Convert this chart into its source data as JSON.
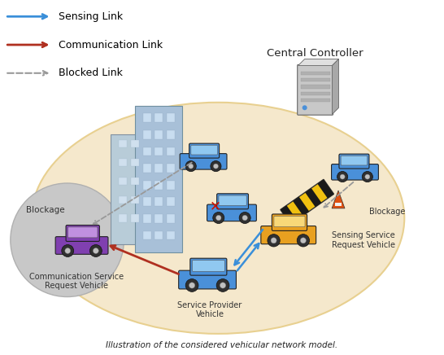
{
  "caption": "Illustration of the considered vehicular network model.",
  "background_color": "#ffffff",
  "ellipse_color": "#f5e8cc",
  "ellipse_edge_color": "#e8d090",
  "gray_circle_color": "#c0c0c0",
  "legend": {
    "sensing_link_color": "#3a8fd9",
    "comm_link_color": "#b03020",
    "blocked_link_color": "#999999",
    "sensing_label": "Sensing Link",
    "comm_label": "Communication Link",
    "blocked_label": "Blocked Link"
  },
  "labels": {
    "central_controller": "Central Controller",
    "blockage_left": "Blockage",
    "blockage_right": "Blockage",
    "comm_vehicle": "Communication Service\nRequest Vehicle",
    "sensing_vehicle": "Sensing Service\nRequest Vehicle",
    "provider_vehicle": "Service Provider\nVehicle"
  },
  "font_size_label": 7.5,
  "font_size_legend": 9,
  "font_size_caption": 7.5,
  "font_size_controller": 9.5
}
